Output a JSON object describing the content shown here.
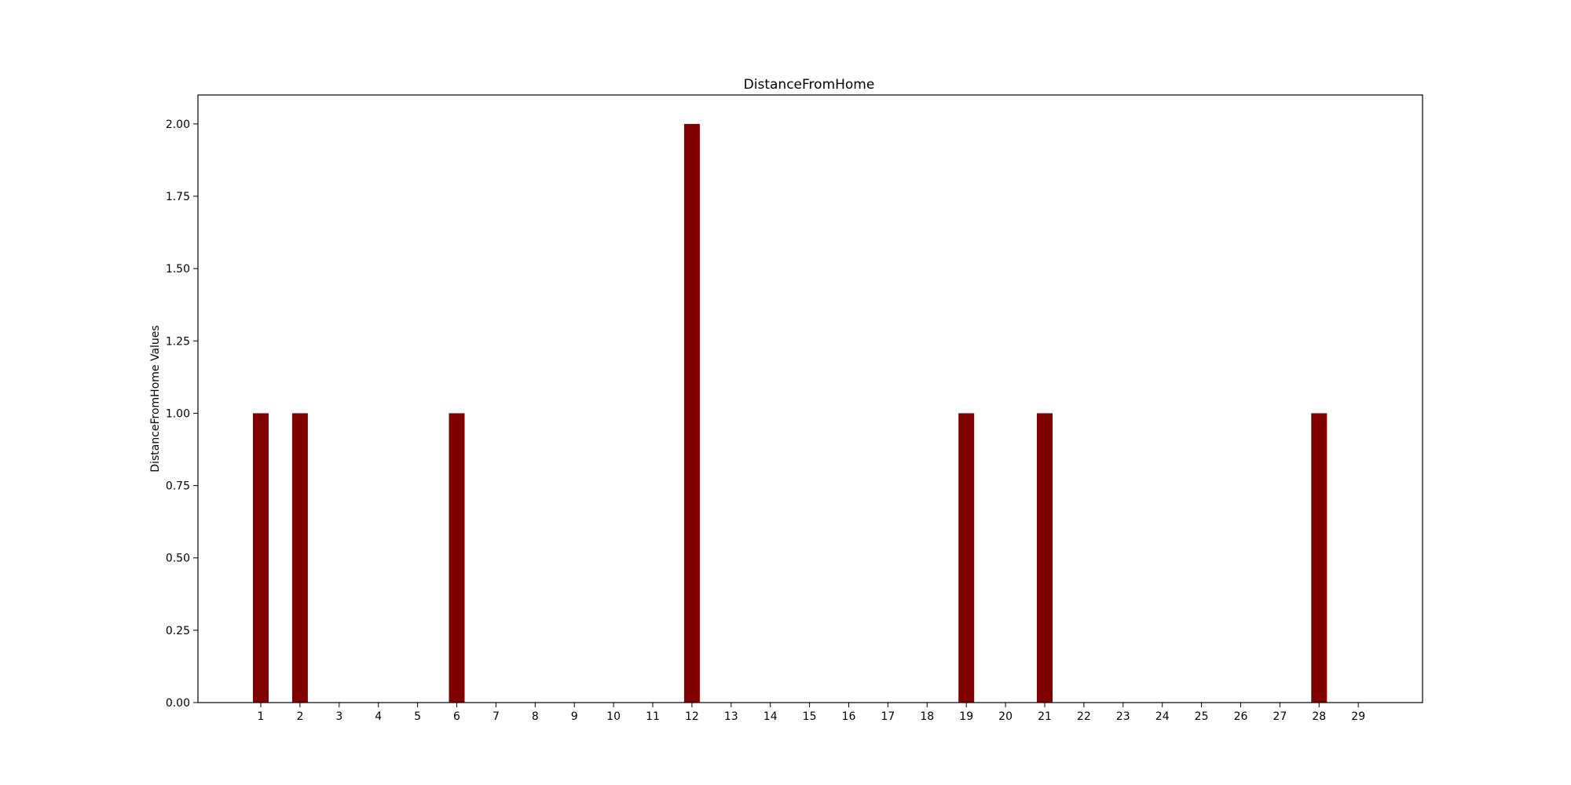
{
  "chart_data": {
    "type": "bar",
    "title": "DistanceFromHome",
    "xlabel": "",
    "ylabel": "DistanceFromHome Values",
    "categories": [
      1,
      2,
      3,
      4,
      5,
      6,
      7,
      8,
      9,
      10,
      11,
      12,
      13,
      14,
      15,
      16,
      17,
      18,
      19,
      20,
      21,
      22,
      23,
      24,
      25,
      26,
      27,
      28,
      29
    ],
    "values": [
      1,
      1,
      0,
      0,
      0,
      1,
      0,
      0,
      0,
      0,
      0,
      2,
      0,
      0,
      0,
      0,
      0,
      0,
      1,
      0,
      1,
      0,
      0,
      0,
      0,
      0,
      0,
      1,
      0
    ],
    "ylim": [
      0,
      2.1
    ],
    "yticks": [
      "0.00",
      "0.25",
      "0.50",
      "0.75",
      "1.00",
      "1.25",
      "1.50",
      "1.75",
      "2.00"
    ],
    "bar_color": "#800000",
    "grid": false
  }
}
